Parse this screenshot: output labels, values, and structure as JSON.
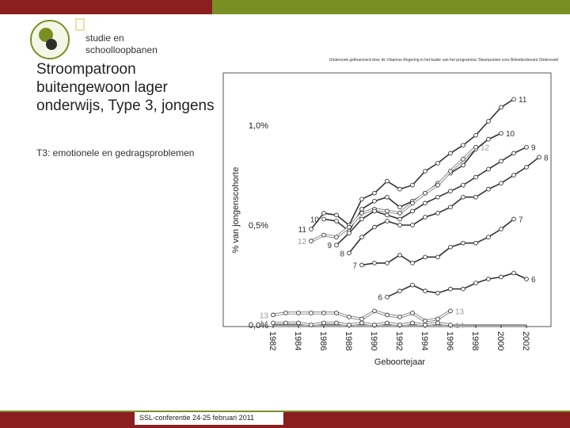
{
  "header": {
    "brand_line1": "studie en",
    "brand_line2": "schoolloopbanen",
    "funding_note": "Onderzoek gefinancierd door de Vlaamse Regering in het kader van het programma 'Steunpunten voor Beleidsrelevant Onderzoek'"
  },
  "slide": {
    "title": "Stroompatroon buitengewoon lager onderwijs, Type 3, jongens",
    "subtitle": "T3: emotionele en gedragsproblemen"
  },
  "footer": {
    "text": "SSL-conferentie 24-25 februari 2011"
  },
  "colors": {
    "dark_red": "#8b1e1e",
    "olive": "#7a8f23",
    "line": "#333333",
    "highlight": "#ffffff",
    "plot_bg": "#ffffff"
  },
  "chart_data": {
    "type": "line",
    "xlabel": "Geboortejaar",
    "ylabel": "% van jongenscohorte",
    "x_ticks": [
      "1982",
      "1984",
      "1986",
      "1988",
      "1990",
      "1992",
      "1994",
      "1996",
      "1998",
      "2000",
      "2002"
    ],
    "y_ticks": [
      "0,0%",
      "0,5%",
      "1,0%"
    ],
    "ylim": [
      0,
      1.2
    ],
    "xlim": [
      1982,
      2002
    ],
    "grid": false,
    "series": [
      {
        "name": "11",
        "x_start": 1985,
        "values": [
          0.48,
          0.56,
          0.55,
          0.5,
          0.63,
          0.66,
          0.72,
          0.68,
          0.7,
          0.77,
          0.81,
          0.86,
          0.9,
          0.95,
          1.02,
          1.09,
          1.13
        ],
        "label_left": "11",
        "label_right": "11",
        "highlight": false
      },
      {
        "name": "10",
        "x_start": 1986,
        "values": [
          0.53,
          0.52,
          0.47,
          0.58,
          0.62,
          0.64,
          0.59,
          0.62,
          0.66,
          0.71,
          0.76,
          0.8,
          0.88,
          0.93,
          0.96
        ],
        "label_left": "10",
        "label_right": "10",
        "highlight": false
      },
      {
        "name": "12",
        "x_start": 1985,
        "values": [
          0.42,
          0.45,
          0.44,
          0.49,
          0.56,
          0.58,
          0.57,
          0.56,
          0.61,
          0.66,
          0.7,
          0.77,
          0.83,
          0.89
        ],
        "label_left": "12",
        "label_right": "12",
        "highlight": true
      },
      {
        "name": "9",
        "x_start": 1987,
        "values": [
          0.4,
          0.46,
          0.53,
          0.57,
          0.55,
          0.53,
          0.57,
          0.61,
          0.64,
          0.67,
          0.7,
          0.74,
          0.78,
          0.82,
          0.86,
          0.89
        ],
        "label_left": "9",
        "label_right": "9",
        "highlight": false
      },
      {
        "name": "8",
        "x_start": 1988,
        "values": [
          0.36,
          0.44,
          0.49,
          0.52,
          0.5,
          0.5,
          0.54,
          0.56,
          0.59,
          0.64,
          0.64,
          0.68,
          0.71,
          0.75,
          0.79,
          0.84
        ],
        "label_left": "8",
        "label_right": "8",
        "highlight": false
      },
      {
        "name": "7",
        "x_start": 1989,
        "values": [
          0.3,
          0.31,
          0.31,
          0.35,
          0.31,
          0.34,
          0.34,
          0.39,
          0.41,
          0.41,
          0.44,
          0.48,
          0.53
        ],
        "label_left": "7",
        "label_right": "7",
        "highlight": false
      },
      {
        "name": "6",
        "x_start": 1991,
        "values": [
          0.14,
          0.17,
          0.2,
          0.17,
          0.16,
          0.18,
          0.18,
          0.21,
          0.23,
          0.24,
          0.26,
          0.23
        ],
        "label_left": "6",
        "label_right": "6",
        "highlight": false
      },
      {
        "name": "13",
        "x_start": 1982,
        "values": [
          0.05,
          0.06,
          0.06,
          0.06,
          0.06,
          0.06,
          0.04,
          0.03,
          0.07,
          0.05,
          0.04,
          0.06,
          0.02,
          0.03,
          0.07
        ],
        "label_left": "13",
        "label_right": "13",
        "highlight": true
      },
      {
        "name": "14",
        "x_start": 1982,
        "values": [
          0.01,
          0.01,
          0.01,
          0.0,
          0.01,
          0.01,
          0.0,
          0.01,
          0.0,
          0.01,
          0.0,
          0.01,
          0.0,
          0.01,
          0.0
        ],
        "label_left": "14",
        "label_right": "14",
        "highlight": true
      }
    ]
  }
}
